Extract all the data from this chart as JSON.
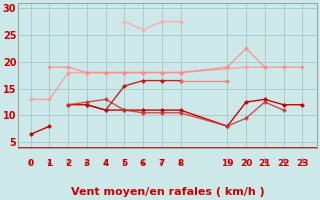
{
  "bg_color": "#cce8e8",
  "grid_color": "#aacccc",
  "xlabel": "Vent moyen/en rafales ( km/h )",
  "xlabel_color": "#cc0000",
  "xlabel_fontsize": 8,
  "tick_color": "#cc0000",
  "ylim": [
    4,
    31
  ],
  "yticks": [
    5,
    10,
    15,
    20,
    25,
    30
  ],
  "lines": [
    {
      "x": [
        0,
        1
      ],
      "y": [
        6.5,
        8
      ],
      "color": "#cc0000",
      "alpha": 1.0,
      "lw": 1.0,
      "ms": 2.5
    },
    {
      "x": [
        2,
        3,
        4,
        5,
        6,
        7,
        8,
        19,
        20,
        21,
        22,
        23
      ],
      "y": [
        12,
        12,
        11,
        11,
        11,
        11,
        11,
        8,
        12.5,
        13,
        12,
        12
      ],
      "color": "#cc0000",
      "alpha": 1.0,
      "lw": 1.0,
      "ms": 2.5
    },
    {
      "x": [
        2,
        3,
        4,
        5,
        6,
        7,
        8,
        19,
        20,
        21,
        22
      ],
      "y": [
        12,
        12.5,
        13,
        11,
        10.5,
        10.5,
        10.5,
        8,
        9.5,
        12.5,
        11
      ],
      "color": "#cc3333",
      "alpha": 0.85,
      "lw": 1.0,
      "ms": 2.5
    },
    {
      "x": [
        3,
        4,
        5,
        6,
        7,
        8
      ],
      "y": [
        12,
        11,
        15.5,
        16.5,
        16.5,
        16.5
      ],
      "color": "#bb1111",
      "alpha": 0.9,
      "lw": 1.0,
      "ms": 2.5
    },
    {
      "x": [
        0,
        1,
        2,
        3,
        4,
        5,
        6,
        7,
        8,
        20,
        21
      ],
      "y": [
        13,
        13,
        18,
        18,
        18,
        18,
        18,
        18,
        18,
        19,
        19
      ],
      "color": "#ff9999",
      "alpha": 0.9,
      "lw": 1.0,
      "ms": 2.5
    },
    {
      "x": [
        5,
        6,
        7,
        8
      ],
      "y": [
        27.5,
        26,
        27.5,
        27.5
      ],
      "color": "#ffaaaa",
      "alpha": 0.9,
      "lw": 1.0,
      "ms": 2.5
    },
    {
      "x": [
        1,
        2,
        3,
        4,
        5,
        6,
        7,
        8,
        19,
        20,
        21,
        22,
        23
      ],
      "y": [
        19,
        19,
        18,
        18,
        18,
        18,
        18,
        18,
        19,
        22.5,
        19,
        19,
        19
      ],
      "color": "#ff8888",
      "alpha": 0.8,
      "lw": 1.0,
      "ms": 2.5
    },
    {
      "x": [
        8,
        19
      ],
      "y": [
        16.5,
        16.5
      ],
      "color": "#ee7777",
      "alpha": 0.8,
      "lw": 1.0,
      "ms": 2.5
    }
  ],
  "left_x": [
    0,
    1,
    2,
    3,
    4,
    5,
    6,
    7,
    8
  ],
  "right_x": [
    19,
    20,
    21,
    22,
    23
  ],
  "left_pos": [
    0,
    1,
    2,
    3,
    4,
    5,
    6,
    7,
    8
  ],
  "right_pos": [
    10.5,
    11.5,
    12.5,
    13.5,
    14.5
  ],
  "xlim": [
    -0.7,
    15.3
  ],
  "arrow_left_dir": [
    -1,
    -1,
    -1,
    -1,
    -1,
    -1,
    -1,
    -1,
    -1
  ],
  "arrow_right_dir": [
    1,
    1,
    1,
    1,
    1
  ]
}
